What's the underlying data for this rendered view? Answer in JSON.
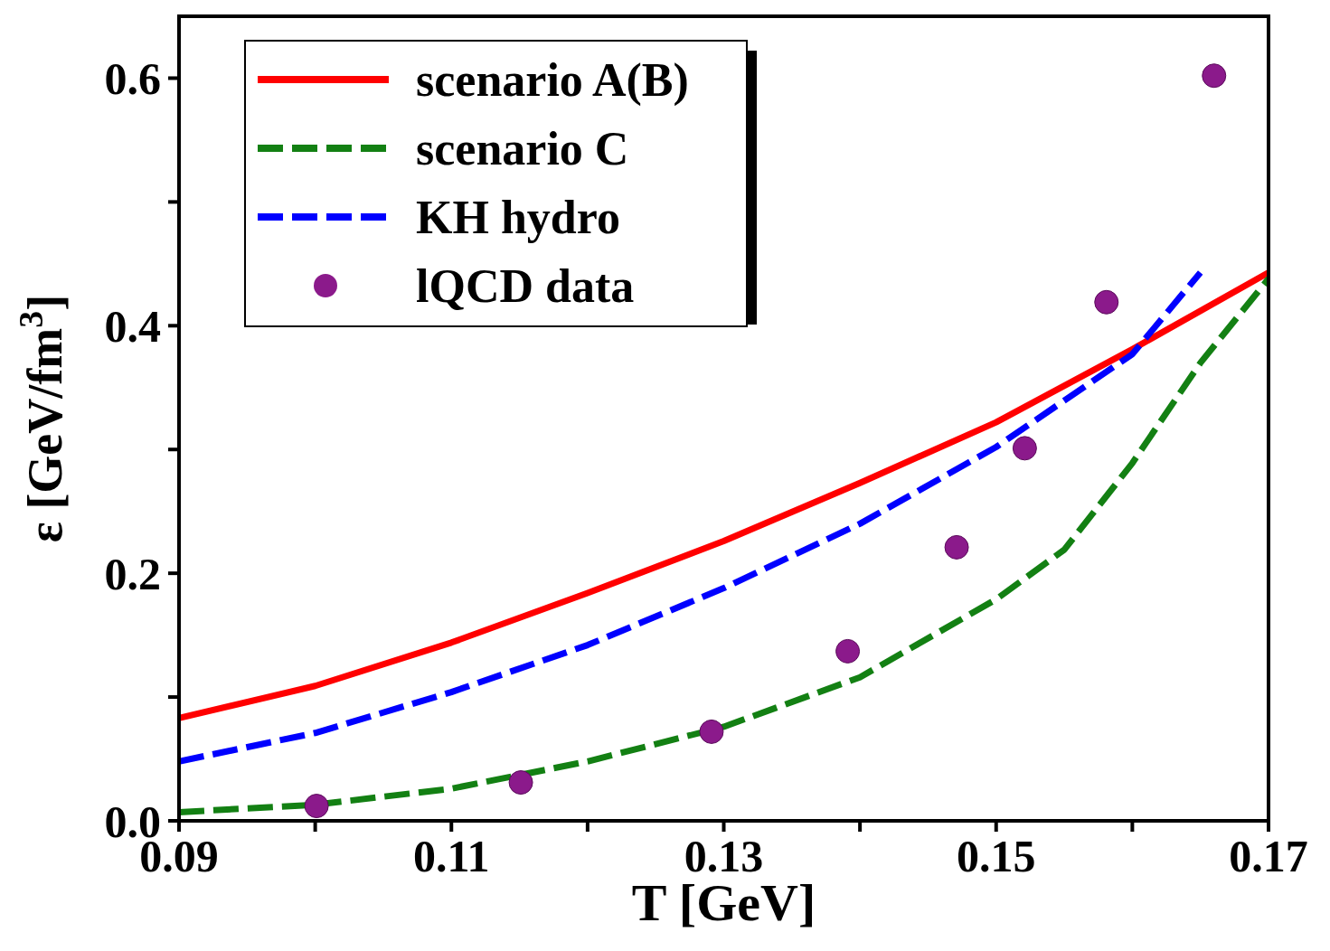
{
  "chart_data": {
    "type": "line",
    "xlabel": "T [GeV]",
    "ylabel": "ε [GeV/fm$^{3}$]",
    "xlim": [
      0.09,
      0.17
    ],
    "ylim": [
      0,
      0.65
    ],
    "xticks": [
      0.09,
      {
        "value": 0.1,
        "label": null
      },
      0.11,
      {
        "value": 0.12,
        "label": null
      },
      0.13,
      {
        "value": 0.14,
        "label": null
      },
      0.15,
      {
        "value": 0.16,
        "label": null
      },
      0.17
    ],
    "yticks": [
      {
        "value": 0,
        "label": "0.0"
      },
      {
        "value": 0.1,
        "label": null
      },
      0.2,
      {
        "value": 0.3,
        "label": null
      },
      0.4,
      {
        "value": 0.5,
        "label": null
      },
      0.6
    ],
    "grid": false,
    "legend": "top left",
    "marker": "none",
    "series": [
      {
        "name": "scenario A(B)",
        "color": "#ff0000",
        "line_style": "solid",
        "x": [
          0.09,
          0.1,
          0.11,
          0.12,
          0.13,
          0.14,
          0.15,
          0.16,
          0.17
        ],
        "values": [
          0.083,
          0.109,
          0.144,
          0.184,
          0.226,
          0.273,
          0.322,
          0.381,
          0.443
        ]
      },
      {
        "name": "scenario C",
        "color": "#138013",
        "line_style": "dashed",
        "x": [
          0.09,
          0.1,
          0.11,
          0.12,
          0.13,
          0.14,
          0.15,
          0.155,
          0.16,
          0.165,
          0.17
        ],
        "values": [
          0.007,
          0.013,
          0.026,
          0.048,
          0.076,
          0.116,
          0.179,
          0.219,
          0.289,
          0.37,
          0.438
        ]
      },
      {
        "name": "KH hydro",
        "color": "#0000ff",
        "line_style": "dashed",
        "x": [
          0.09,
          0.1,
          0.11,
          0.12,
          0.13,
          0.14,
          0.15,
          0.16,
          0.165
        ],
        "values": [
          0.048,
          0.071,
          0.104,
          0.142,
          0.188,
          0.24,
          0.302,
          0.377,
          0.443
        ]
      },
      {
        "name": "lQCD data",
        "type": "scatter",
        "marker": "circle",
        "color": "#8b1a8b",
        "x": [
          0.1001,
          0.1151,
          0.1291,
          0.1391,
          0.1471,
          0.1521,
          0.1581,
          0.166
        ],
        "values": [
          0.012,
          0.031,
          0.072,
          0.137,
          0.221,
          0.301,
          0.419,
          0.602
        ]
      }
    ]
  }
}
